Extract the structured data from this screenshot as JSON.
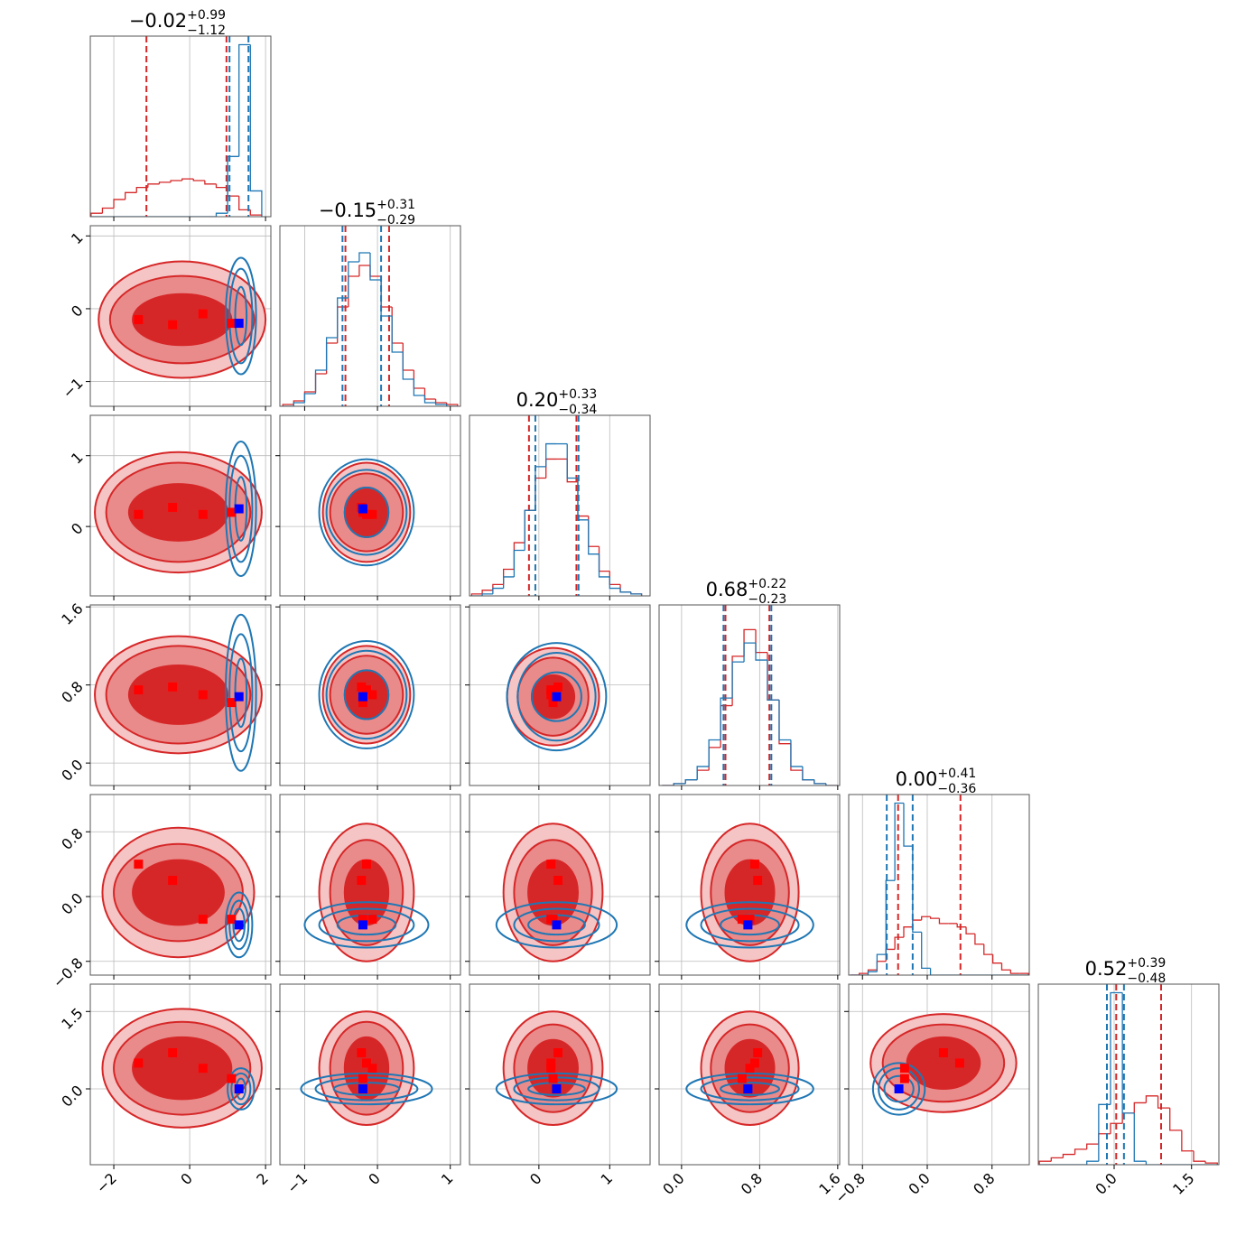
{
  "chart_data": {
    "type": "corner",
    "colors": {
      "red": "#d62728",
      "blue": "#1f77b4",
      "red_mid": "#e98b8b",
      "red_light": "#f5c4c4",
      "red_point": "#ff0000",
      "blue_point": "#0000ff"
    },
    "grid": true,
    "titles": [
      {
        "median": "−0.02",
        "plus": "+0.99",
        "minus": "−1.12"
      },
      {
        "median": "−0.15",
        "plus": "+0.31",
        "minus": "−0.29"
      },
      {
        "median": "0.20",
        "plus": "+0.33",
        "minus": "−0.34"
      },
      {
        "median": "0.68",
        "plus": "+0.22",
        "minus": "−0.23"
      },
      {
        "median": "0.00",
        "plus": "+0.41",
        "minus": "−0.36"
      },
      {
        "median": "0.52",
        "plus": "+0.39",
        "minus": "−0.48"
      }
    ],
    "dims": [
      {
        "lim": [
          -2.62,
          2.14
        ],
        "ticks": [
          {
            "value": -2,
            "label": "−2"
          },
          0,
          2
        ]
      },
      {
        "lim": [
          -1.34,
          1.14
        ],
        "ticks": [
          {
            "value": -1,
            "label": "−1"
          },
          0,
          1
        ]
      },
      {
        "lim": [
          -0.98,
          1.57
        ],
        "ticks": [
          0,
          1
        ]
      },
      {
        "lim": [
          -0.23,
          1.62
        ],
        "ticks": [
          {
            "value": 0,
            "label": "0.0"
          },
          0.8,
          1.6
        ]
      },
      {
        "lim": [
          -0.97,
          1.26
        ],
        "ticks": [
          {
            "value": -0.8,
            "label": "−0.8"
          },
          {
            "value": 0,
            "label": "0.0"
          },
          0.8
        ]
      },
      {
        "lim": [
          -1.47,
          2.03
        ],
        "ticks": [
          {
            "value": 0,
            "label": "0.0"
          },
          1.5
        ]
      }
    ],
    "hists": [
      {
        "bins": [
          -2.6,
          -2.3,
          -2.0,
          -1.7,
          -1.4,
          -1.1,
          -0.8,
          -0.5,
          -0.2,
          0.1,
          0.4,
          0.7,
          1.0,
          1.3,
          1.6,
          1.9
        ],
        "ylim": [
          0,
          1.05
        ],
        "red": [
          0.02,
          0.05,
          0.1,
          0.14,
          0.17,
          0.19,
          0.2,
          0.21,
          0.22,
          0.21,
          0.19,
          0.17,
          0.12,
          0.04,
          0.01
        ],
        "blue": [
          0,
          0,
          0,
          0,
          0,
          0,
          0,
          0,
          0,
          0,
          0,
          0.02,
          0.35,
          1.0,
          0.15
        ],
        "red_quantiles": [
          -1.14,
          0.97
        ],
        "blue_quantiles": [
          1.05,
          1.55
        ]
      },
      {
        "bins": [
          -1.3,
          -1.15,
          -1.0,
          -0.85,
          -0.7,
          -0.55,
          -0.4,
          -0.25,
          -0.1,
          0.05,
          0.2,
          0.35,
          0.5,
          0.65,
          0.8,
          0.95,
          1.1
        ],
        "ylim": [
          0,
          1
        ],
        "red": [
          0.01,
          0.03,
          0.08,
          0.18,
          0.35,
          0.55,
          0.72,
          0.78,
          0.72,
          0.55,
          0.35,
          0.2,
          0.1,
          0.04,
          0.02,
          0.01
        ],
        "blue": [
          0,
          0.02,
          0.07,
          0.2,
          0.38,
          0.6,
          0.8,
          0.85,
          0.7,
          0.5,
          0.3,
          0.15,
          0.06,
          0.02,
          0.01,
          0
        ],
        "red_quantiles": [
          -0.44,
          0.16
        ],
        "blue_quantiles": [
          -0.48,
          0.05
        ]
      },
      {
        "bins": [
          -0.95,
          -0.8,
          -0.65,
          -0.5,
          -0.35,
          -0.2,
          -0.05,
          0.1,
          0.25,
          0.4,
          0.55,
          0.7,
          0.85,
          1.0,
          1.15,
          1.3,
          1.45
        ],
        "ylim": [
          0,
          0.95
        ],
        "red": [
          0.01,
          0.03,
          0.06,
          0.14,
          0.28,
          0.45,
          0.62,
          0.72,
          0.72,
          0.6,
          0.42,
          0.26,
          0.13,
          0.06,
          0.02,
          0.01
        ],
        "blue": [
          0,
          0.01,
          0.04,
          0.1,
          0.24,
          0.45,
          0.68,
          0.8,
          0.8,
          0.62,
          0.4,
          0.22,
          0.1,
          0.04,
          0.02,
          0.01
        ],
        "red_quantiles": [
          -0.14,
          0.53
        ],
        "blue_quantiles": [
          -0.05,
          0.56
        ]
      },
      {
        "bins": [
          -0.2,
          -0.08,
          0.04,
          0.16,
          0.28,
          0.4,
          0.52,
          0.64,
          0.76,
          0.88,
          1.0,
          1.12,
          1.24,
          1.36,
          1.48,
          1.6
        ],
        "ylim": [
          0,
          0.95
        ],
        "red": [
          0,
          0.01,
          0.03,
          0.08,
          0.2,
          0.42,
          0.68,
          0.82,
          0.7,
          0.45,
          0.22,
          0.08,
          0.03,
          0.01,
          0
        ],
        "blue": [
          0,
          0.01,
          0.03,
          0.1,
          0.24,
          0.46,
          0.65,
          0.75,
          0.66,
          0.45,
          0.24,
          0.1,
          0.03,
          0.01,
          0
        ],
        "red_quantiles": [
          0.45,
          0.9
        ],
        "blue_quantiles": [
          0.43,
          0.92
        ]
      },
      {
        "bins": [
          -0.95,
          -0.84,
          -0.73,
          -0.62,
          -0.51,
          -0.4,
          -0.29,
          -0.18,
          -0.07,
          0.04,
          0.15,
          0.26,
          0.37,
          0.48,
          0.59,
          0.7,
          0.81,
          0.92,
          1.03,
          1.14,
          1.25
        ],
        "ylim": [
          0,
          1.05
        ],
        "red": [
          0,
          0.01,
          0.03,
          0.08,
          0.15,
          0.22,
          0.28,
          0.32,
          0.34,
          0.33,
          0.3,
          0.3,
          0.28,
          0.24,
          0.18,
          0.12,
          0.07,
          0.03,
          0.01,
          0.01
        ],
        "blue": [
          0,
          0,
          0.02,
          0.12,
          0.55,
          1.0,
          0.75,
          0.25,
          0.04,
          0,
          0,
          0,
          0,
          0,
          0,
          0,
          0,
          0,
          0,
          0
        ],
        "red_quantiles": [
          -0.36,
          0.41
        ],
        "blue_quantiles": [
          -0.5,
          -0.18
        ]
      },
      {
        "bins": [
          -1.45,
          -1.22,
          -0.99,
          -0.76,
          -0.53,
          -0.3,
          -0.07,
          0.16,
          0.39,
          0.62,
          0.85,
          1.08,
          1.31,
          1.54,
          1.77,
          2.0
        ],
        "ylim": [
          0,
          1.05
        ],
        "red": [
          0.02,
          0.04,
          0.06,
          0.09,
          0.12,
          0.18,
          0.24,
          0.3,
          0.36,
          0.4,
          0.33,
          0.2,
          0.08,
          0.02,
          0.01
        ],
        "blue": [
          0,
          0,
          0,
          0,
          0.02,
          0.35,
          1.0,
          0.3,
          0.02,
          0,
          0,
          0,
          0,
          0,
          0
        ],
        "red_quantiles": [
          0.04,
          0.91
        ],
        "blue_quantiles": [
          -0.14,
          0.19
        ]
      }
    ],
    "contours": [
      [
        {
          "red": {
            "cx": -0.2,
            "cy": -0.15,
            "rx": [
              2.2,
              1.9,
              1.3
            ],
            "ry": [
              0.8,
              0.6,
              0.35
            ]
          },
          "blue": {
            "cx": 1.35,
            "cy": -0.1,
            "rx": [
              0.4,
              0.3,
              0.15
            ],
            "ry": [
              0.8,
              0.65,
              0.4
            ]
          }
        }
      ],
      [
        {
          "red": {
            "cx": -0.3,
            "cy": 0.2,
            "rx": [
              2.2,
              1.9,
              1.3
            ],
            "ry": [
              0.85,
              0.7,
              0.4
            ]
          },
          "blue": {
            "cx": 1.35,
            "cy": 0.25,
            "rx": [
              0.4,
              0.3,
              0.15
            ],
            "ry": [
              0.95,
              0.75,
              0.45
            ]
          }
        },
        {
          "red": {
            "cx": -0.15,
            "cy": 0.2,
            "rx": [
              0.6,
              0.5,
              0.3
            ],
            "ry": [
              0.7,
              0.55,
              0.35
            ]
          },
          "blue": {
            "cx": -0.15,
            "cy": 0.2,
            "rx": [
              0.65,
              0.55,
              0.3
            ],
            "ry": [
              0.75,
              0.6,
              0.35
            ]
          }
        }
      ],
      [
        {
          "red": {
            "cx": -0.3,
            "cy": 0.7,
            "rx": [
              2.2,
              1.9,
              1.3
            ],
            "ry": [
              0.6,
              0.5,
              0.3
            ]
          },
          "blue": {
            "cx": 1.35,
            "cy": 0.72,
            "rx": [
              0.4,
              0.3,
              0.15
            ],
            "ry": [
              0.8,
              0.6,
              0.35
            ]
          }
        },
        {
          "red": {
            "cx": -0.15,
            "cy": 0.7,
            "rx": [
              0.6,
              0.5,
              0.3
            ],
            "ry": [
              0.5,
              0.4,
              0.25
            ]
          },
          "blue": {
            "cx": -0.15,
            "cy": 0.7,
            "rx": [
              0.65,
              0.55,
              0.3
            ],
            "ry": [
              0.55,
              0.45,
              0.25
            ]
          }
        },
        {
          "red": {
            "cx": 0.2,
            "cy": 0.68,
            "rx": [
              0.65,
              0.5,
              0.3
            ],
            "ry": [
              0.5,
              0.4,
              0.22
            ]
          },
          "blue": {
            "cx": 0.25,
            "cy": 0.68,
            "rx": [
              0.7,
              0.55,
              0.35
            ],
            "ry": [
              0.55,
              0.45,
              0.25
            ]
          }
        }
      ],
      [
        {
          "red": {
            "cx": -0.3,
            "cy": 0.05,
            "rx": [
              2.0,
              1.7,
              1.2
            ],
            "ry": [
              0.8,
              0.6,
              0.4
            ]
          },
          "blue": {
            "cx": 1.3,
            "cy": -0.35,
            "rx": [
              0.35,
              0.25,
              0.15
            ],
            "ry": [
              0.4,
              0.3,
              0.2
            ]
          }
        },
        {
          "red": {
            "cx": -0.15,
            "cy": 0.05,
            "rx": [
              0.65,
              0.5,
              0.3
            ],
            "ry": [
              0.85,
              0.65,
              0.4
            ]
          },
          "blue": {
            "cx": -0.15,
            "cy": -0.35,
            "rx": [
              0.85,
              0.65,
              0.4
            ],
            "ry": [
              0.28,
              0.2,
              0.12
            ]
          }
        },
        {
          "red": {
            "cx": 0.2,
            "cy": 0.05,
            "rx": [
              0.7,
              0.55,
              0.35
            ],
            "ry": [
              0.85,
              0.65,
              0.4
            ]
          },
          "blue": {
            "cx": 0.25,
            "cy": -0.35,
            "rx": [
              0.85,
              0.6,
              0.4
            ],
            "ry": [
              0.28,
              0.2,
              0.12
            ]
          }
        },
        {
          "red": {
            "cx": 0.7,
            "cy": 0.05,
            "rx": [
              0.5,
              0.4,
              0.25
            ],
            "ry": [
              0.85,
              0.65,
              0.4
            ]
          },
          "blue": {
            "cx": 0.7,
            "cy": -0.35,
            "rx": [
              0.65,
              0.5,
              0.3
            ],
            "ry": [
              0.28,
              0.2,
              0.12
            ]
          }
        }
      ],
      [
        {
          "red": {
            "cx": -0.2,
            "cy": 0.4,
            "rx": [
              2.1,
              1.8,
              1.3
            ],
            "ry": [
              1.15,
              0.9,
              0.6
            ]
          },
          "blue": {
            "cx": 1.35,
            "cy": 0.0,
            "rx": [
              0.35,
              0.25,
              0.12
            ],
            "ry": [
              0.4,
              0.3,
              0.2
            ]
          }
        },
        {
          "red": {
            "cx": -0.15,
            "cy": 0.4,
            "rx": [
              0.65,
              0.5,
              0.3
            ],
            "ry": [
              1.1,
              0.9,
              0.6
            ]
          },
          "blue": {
            "cx": -0.15,
            "cy": 0.0,
            "rx": [
              0.9,
              0.7,
              0.45
            ],
            "ry": [
              0.3,
              0.22,
              0.12
            ]
          }
        },
        {
          "red": {
            "cx": 0.2,
            "cy": 0.4,
            "rx": [
              0.7,
              0.55,
              0.35
            ],
            "ry": [
              1.1,
              0.85,
              0.55
            ]
          },
          "blue": {
            "cx": 0.25,
            "cy": 0.0,
            "rx": [
              0.85,
              0.6,
              0.4
            ],
            "ry": [
              0.3,
              0.22,
              0.12
            ]
          }
        },
        {
          "red": {
            "cx": 0.7,
            "cy": 0.4,
            "rx": [
              0.5,
              0.4,
              0.25
            ],
            "ry": [
              1.1,
              0.85,
              0.55
            ]
          },
          "blue": {
            "cx": 0.7,
            "cy": 0.0,
            "rx": [
              0.65,
              0.5,
              0.3
            ],
            "ry": [
              0.3,
              0.22,
              0.12
            ]
          }
        },
        {
          "red": {
            "cx": 0.2,
            "cy": 0.5,
            "rx": [
              0.9,
              0.75,
              0.45
            ],
            "ry": [
              0.95,
              0.75,
              0.5
            ]
          },
          "blue": {
            "cx": -0.35,
            "cy": 0.0,
            "rx": [
              0.32,
              0.25,
              0.18
            ],
            "ry": [
              0.5,
              0.4,
              0.25
            ]
          }
        }
      ]
    ],
    "red_points": [
      [
        -1.35,
        -0.15,
        0.17,
        0.75,
        0.4,
        0.5
      ],
      [
        -0.45,
        -0.22,
        0.27,
        0.78,
        0.2,
        0.7
      ],
      [
        0.35,
        -0.07,
        0.17,
        0.7,
        -0.28,
        0.4
      ],
      [
        1.1,
        -0.2,
        0.2,
        0.62,
        -0.28,
        0.2
      ]
    ],
    "blue_point": [
      1.3,
      -0.2,
      0.25,
      0.68,
      -0.35,
      0.0
    ]
  }
}
